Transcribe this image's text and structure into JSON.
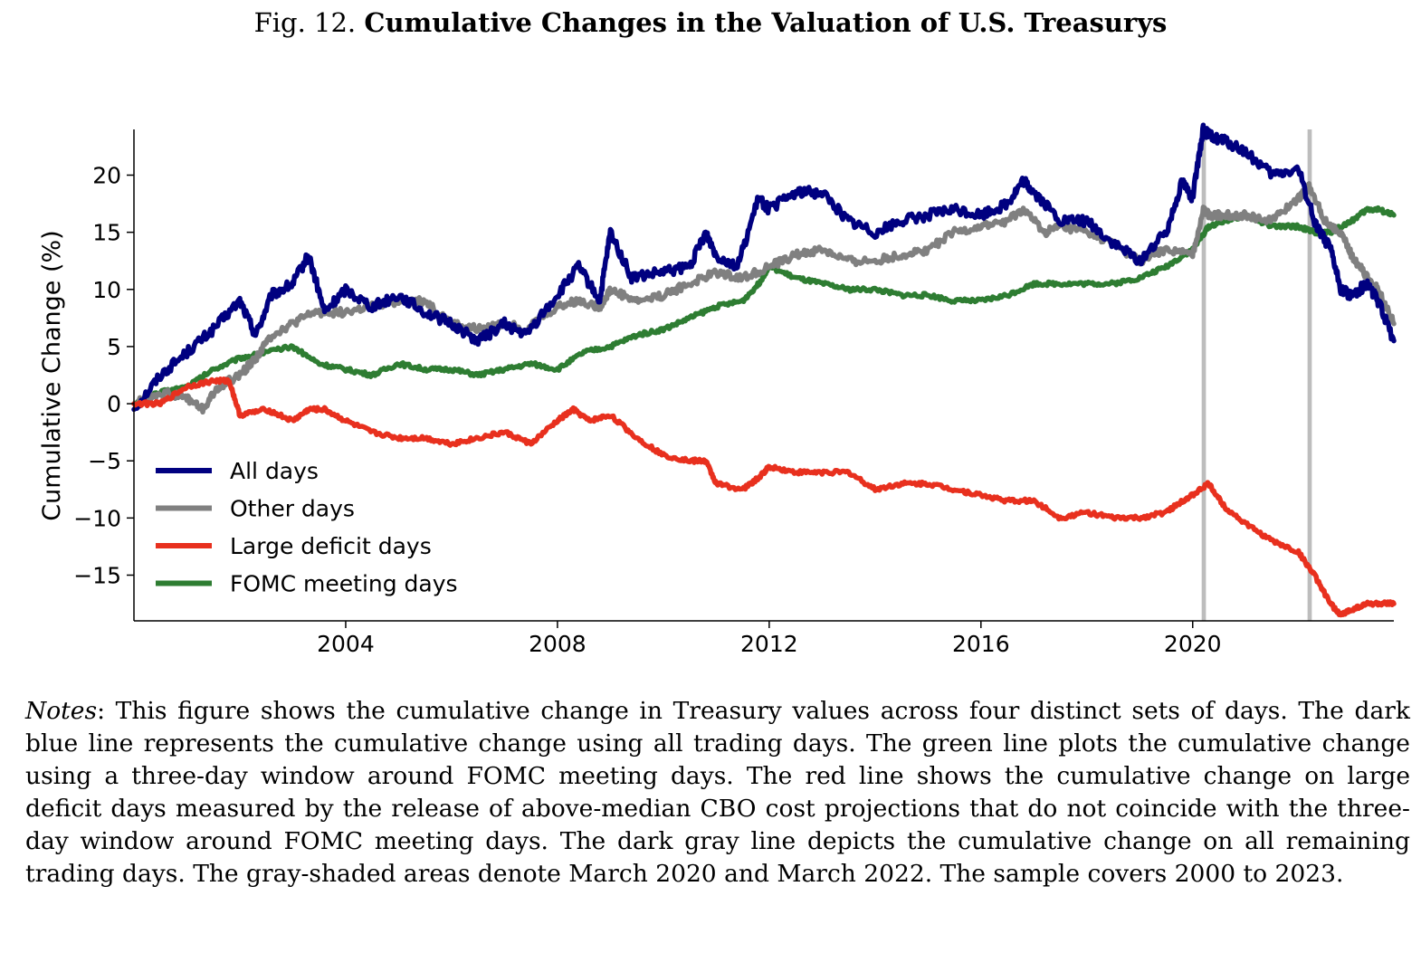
{
  "figure": {
    "number_label": "Fig. 12.",
    "title": "Cumulative Changes in the Valuation of U.S. Treasurys"
  },
  "notes": {
    "label": "Notes",
    "text": ": This figure shows the cumulative change in Treasury values across four distinct sets of days. The dark blue line represents the cumulative change using all trading days. The green line plots the cumulative change using a three-day window around FOMC meeting days. The red line shows the cumulative change on large deficit days measured by the release of above-median CBO cost projections that do not coincide with the three-day window around FOMC meeting days.  The dark gray line depicts the cumulative change on all remaining trading days. The gray-shaded areas denote March 2020 and March 2022. The sample covers 2000 to 2023."
  },
  "chart_data": {
    "type": "line",
    "title": "",
    "xlabel": "",
    "ylabel": "Cumulative Change (%)",
    "xlim": [
      2000.0,
      2023.8
    ],
    "ylim": [
      -19,
      24
    ],
    "xticks": [
      2004,
      2008,
      2012,
      2016,
      2020
    ],
    "yticks": [
      -15,
      -10,
      -5,
      0,
      5,
      10,
      15,
      20
    ],
    "grid": false,
    "legend_position": "lower-left",
    "shaded_periods": [
      {
        "start": 2020.17,
        "end": 2020.25
      },
      {
        "start": 2022.17,
        "end": 2022.25
      }
    ],
    "shade_color": "#bdbdbd",
    "series": [
      {
        "name": "All days",
        "color": "#000080",
        "x": [
          2000.0,
          2000.5,
          2001.0,
          2001.5,
          2002.0,
          2002.3,
          2002.6,
          2003.0,
          2003.3,
          2003.6,
          2004.0,
          2004.5,
          2005.0,
          2005.5,
          2006.0,
          2006.5,
          2007.0,
          2007.4,
          2008.0,
          2008.4,
          2008.8,
          2009.0,
          2009.4,
          2010.0,
          2010.5,
          2010.8,
          2011.0,
          2011.4,
          2011.8,
          2012.0,
          2012.5,
          2013.0,
          2013.5,
          2014.0,
          2014.5,
          2015.0,
          2015.5,
          2016.0,
          2016.5,
          2016.8,
          2017.0,
          2017.5,
          2018.0,
          2018.5,
          2019.0,
          2019.5,
          2019.8,
          2020.0,
          2020.2,
          2020.3,
          2020.6,
          2021.0,
          2021.5,
          2022.0,
          2022.3,
          2022.6,
          2022.8,
          2023.0,
          2023.3,
          2023.5,
          2023.8
        ],
        "y": [
          -0.5,
          2.5,
          4.5,
          6.5,
          9.0,
          6.0,
          9.5,
          10.5,
          13.0,
          8.0,
          10.0,
          8.5,
          9.5,
          8.0,
          7.0,
          5.5,
          7.0,
          6.0,
          9.5,
          12.0,
          9.0,
          15.0,
          11.0,
          11.5,
          12.0,
          15.0,
          13.0,
          12.0,
          18.0,
          17.0,
          18.5,
          18.5,
          16.0,
          15.0,
          16.0,
          16.5,
          17.0,
          16.5,
          17.5,
          19.5,
          18.5,
          16.0,
          16.0,
          14.0,
          12.5,
          15.0,
          19.5,
          18.0,
          24.0,
          23.5,
          23.0,
          22.0,
          20.0,
          20.5,
          16.0,
          13.5,
          10.0,
          9.5,
          10.5,
          9.0,
          5.5
        ]
      },
      {
        "name": "Other days",
        "color": "#808080",
        "x": [
          2000.0,
          2000.5,
          2001.0,
          2001.3,
          2001.6,
          2002.0,
          2002.3,
          2002.6,
          2003.0,
          2003.4,
          2004.0,
          2004.5,
          2005.0,
          2005.5,
          2006.0,
          2006.5,
          2007.0,
          2007.4,
          2008.0,
          2008.4,
          2008.8,
          2009.0,
          2009.5,
          2010.0,
          2010.5,
          2011.0,
          2011.5,
          2012.0,
          2012.5,
          2013.0,
          2013.5,
          2014.0,
          2014.5,
          2015.0,
          2015.5,
          2016.0,
          2016.5,
          2016.8,
          2017.2,
          2017.5,
          2018.0,
          2018.5,
          2019.0,
          2019.5,
          2020.0,
          2020.2,
          2020.3,
          2020.6,
          2021.0,
          2021.5,
          2022.0,
          2022.2,
          2022.5,
          2022.8,
          2023.0,
          2023.3,
          2023.5,
          2023.8
        ],
        "y": [
          0.0,
          1.0,
          0.5,
          -0.5,
          1.5,
          2.5,
          4.0,
          6.0,
          7.0,
          8.0,
          8.0,
          8.5,
          9.0,
          9.0,
          7.0,
          6.5,
          7.0,
          6.5,
          8.5,
          9.0,
          8.5,
          10.0,
          9.0,
          9.5,
          10.5,
          11.5,
          11.0,
          12.0,
          13.0,
          13.5,
          12.5,
          12.5,
          13.0,
          13.5,
          15.0,
          15.5,
          16.0,
          17.0,
          15.0,
          15.5,
          15.0,
          14.0,
          12.5,
          13.5,
          13.0,
          17.0,
          16.5,
          16.5,
          16.5,
          16.0,
          18.0,
          19.0,
          16.0,
          15.0,
          13.0,
          11.0,
          10.0,
          7.0
        ]
      },
      {
        "name": "Large deficit days",
        "color": "#e8301e",
        "x": [
          2000.0,
          2000.5,
          2001.0,
          2001.5,
          2001.8,
          2002.0,
          2002.5,
          2003.0,
          2003.3,
          2003.6,
          2004.0,
          2004.5,
          2005.0,
          2005.5,
          2006.0,
          2006.5,
          2007.0,
          2007.5,
          2008.0,
          2008.3,
          2008.6,
          2009.0,
          2009.5,
          2010.0,
          2010.5,
          2010.8,
          2011.0,
          2011.5,
          2011.8,
          2012.0,
          2012.5,
          2013.0,
          2013.5,
          2014.0,
          2014.5,
          2015.0,
          2015.5,
          2016.0,
          2016.5,
          2017.0,
          2017.5,
          2018.0,
          2018.5,
          2019.0,
          2019.5,
          2019.8,
          2020.0,
          2020.3,
          2020.6,
          2021.0,
          2021.5,
          2022.0,
          2022.3,
          2022.6,
          2022.8,
          2023.0,
          2023.3,
          2023.6,
          2023.8
        ],
        "y": [
          0.0,
          0.0,
          1.5,
          2.0,
          2.0,
          -1.0,
          -0.5,
          -1.5,
          -0.5,
          -0.5,
          -1.5,
          -2.5,
          -3.0,
          -3.0,
          -3.5,
          -3.0,
          -2.5,
          -3.5,
          -1.5,
          -0.5,
          -1.5,
          -1.0,
          -3.0,
          -4.5,
          -5.0,
          -5.0,
          -7.0,
          -7.5,
          -6.5,
          -5.5,
          -6.0,
          -6.0,
          -6.0,
          -7.5,
          -7.0,
          -7.0,
          -7.5,
          -8.0,
          -8.5,
          -8.5,
          -10.0,
          -9.5,
          -10.0,
          -10.0,
          -9.5,
          -8.5,
          -8.0,
          -7.0,
          -9.0,
          -10.5,
          -12.0,
          -13.0,
          -15.0,
          -17.5,
          -18.5,
          -18.0,
          -17.5,
          -17.5,
          -17.5
        ]
      },
      {
        "name": "FOMC meeting days",
        "color": "#2e7d32",
        "x": [
          2000.0,
          2000.5,
          2001.0,
          2001.5,
          2002.0,
          2002.5,
          2003.0,
          2003.5,
          2004.0,
          2004.5,
          2005.0,
          2005.5,
          2006.0,
          2006.5,
          2007.0,
          2007.5,
          2008.0,
          2008.5,
          2009.0,
          2009.5,
          2010.0,
          2010.5,
          2011.0,
          2011.5,
          2011.8,
          2012.0,
          2012.5,
          2013.0,
          2013.5,
          2014.0,
          2014.5,
          2015.0,
          2015.5,
          2016.0,
          2016.5,
          2017.0,
          2017.5,
          2018.0,
          2018.5,
          2019.0,
          2019.5,
          2020.0,
          2020.3,
          2020.6,
          2021.0,
          2021.5,
          2022.0,
          2022.3,
          2022.6,
          2023.0,
          2023.3,
          2023.5,
          2023.8
        ],
        "y": [
          0.0,
          1.0,
          1.5,
          3.0,
          4.0,
          4.5,
          5.0,
          3.5,
          3.0,
          2.5,
          3.5,
          3.0,
          3.0,
          2.5,
          3.0,
          3.5,
          3.0,
          4.5,
          5.0,
          6.0,
          6.5,
          7.5,
          8.5,
          9.0,
          10.5,
          12.0,
          11.0,
          10.5,
          10.0,
          10.0,
          9.5,
          9.5,
          9.0,
          9.0,
          9.5,
          10.5,
          10.5,
          10.5,
          10.5,
          11.0,
          12.0,
          13.5,
          15.5,
          16.0,
          16.5,
          15.5,
          15.5,
          15.0,
          15.0,
          16.0,
          17.0,
          17.0,
          16.5
        ]
      }
    ]
  }
}
